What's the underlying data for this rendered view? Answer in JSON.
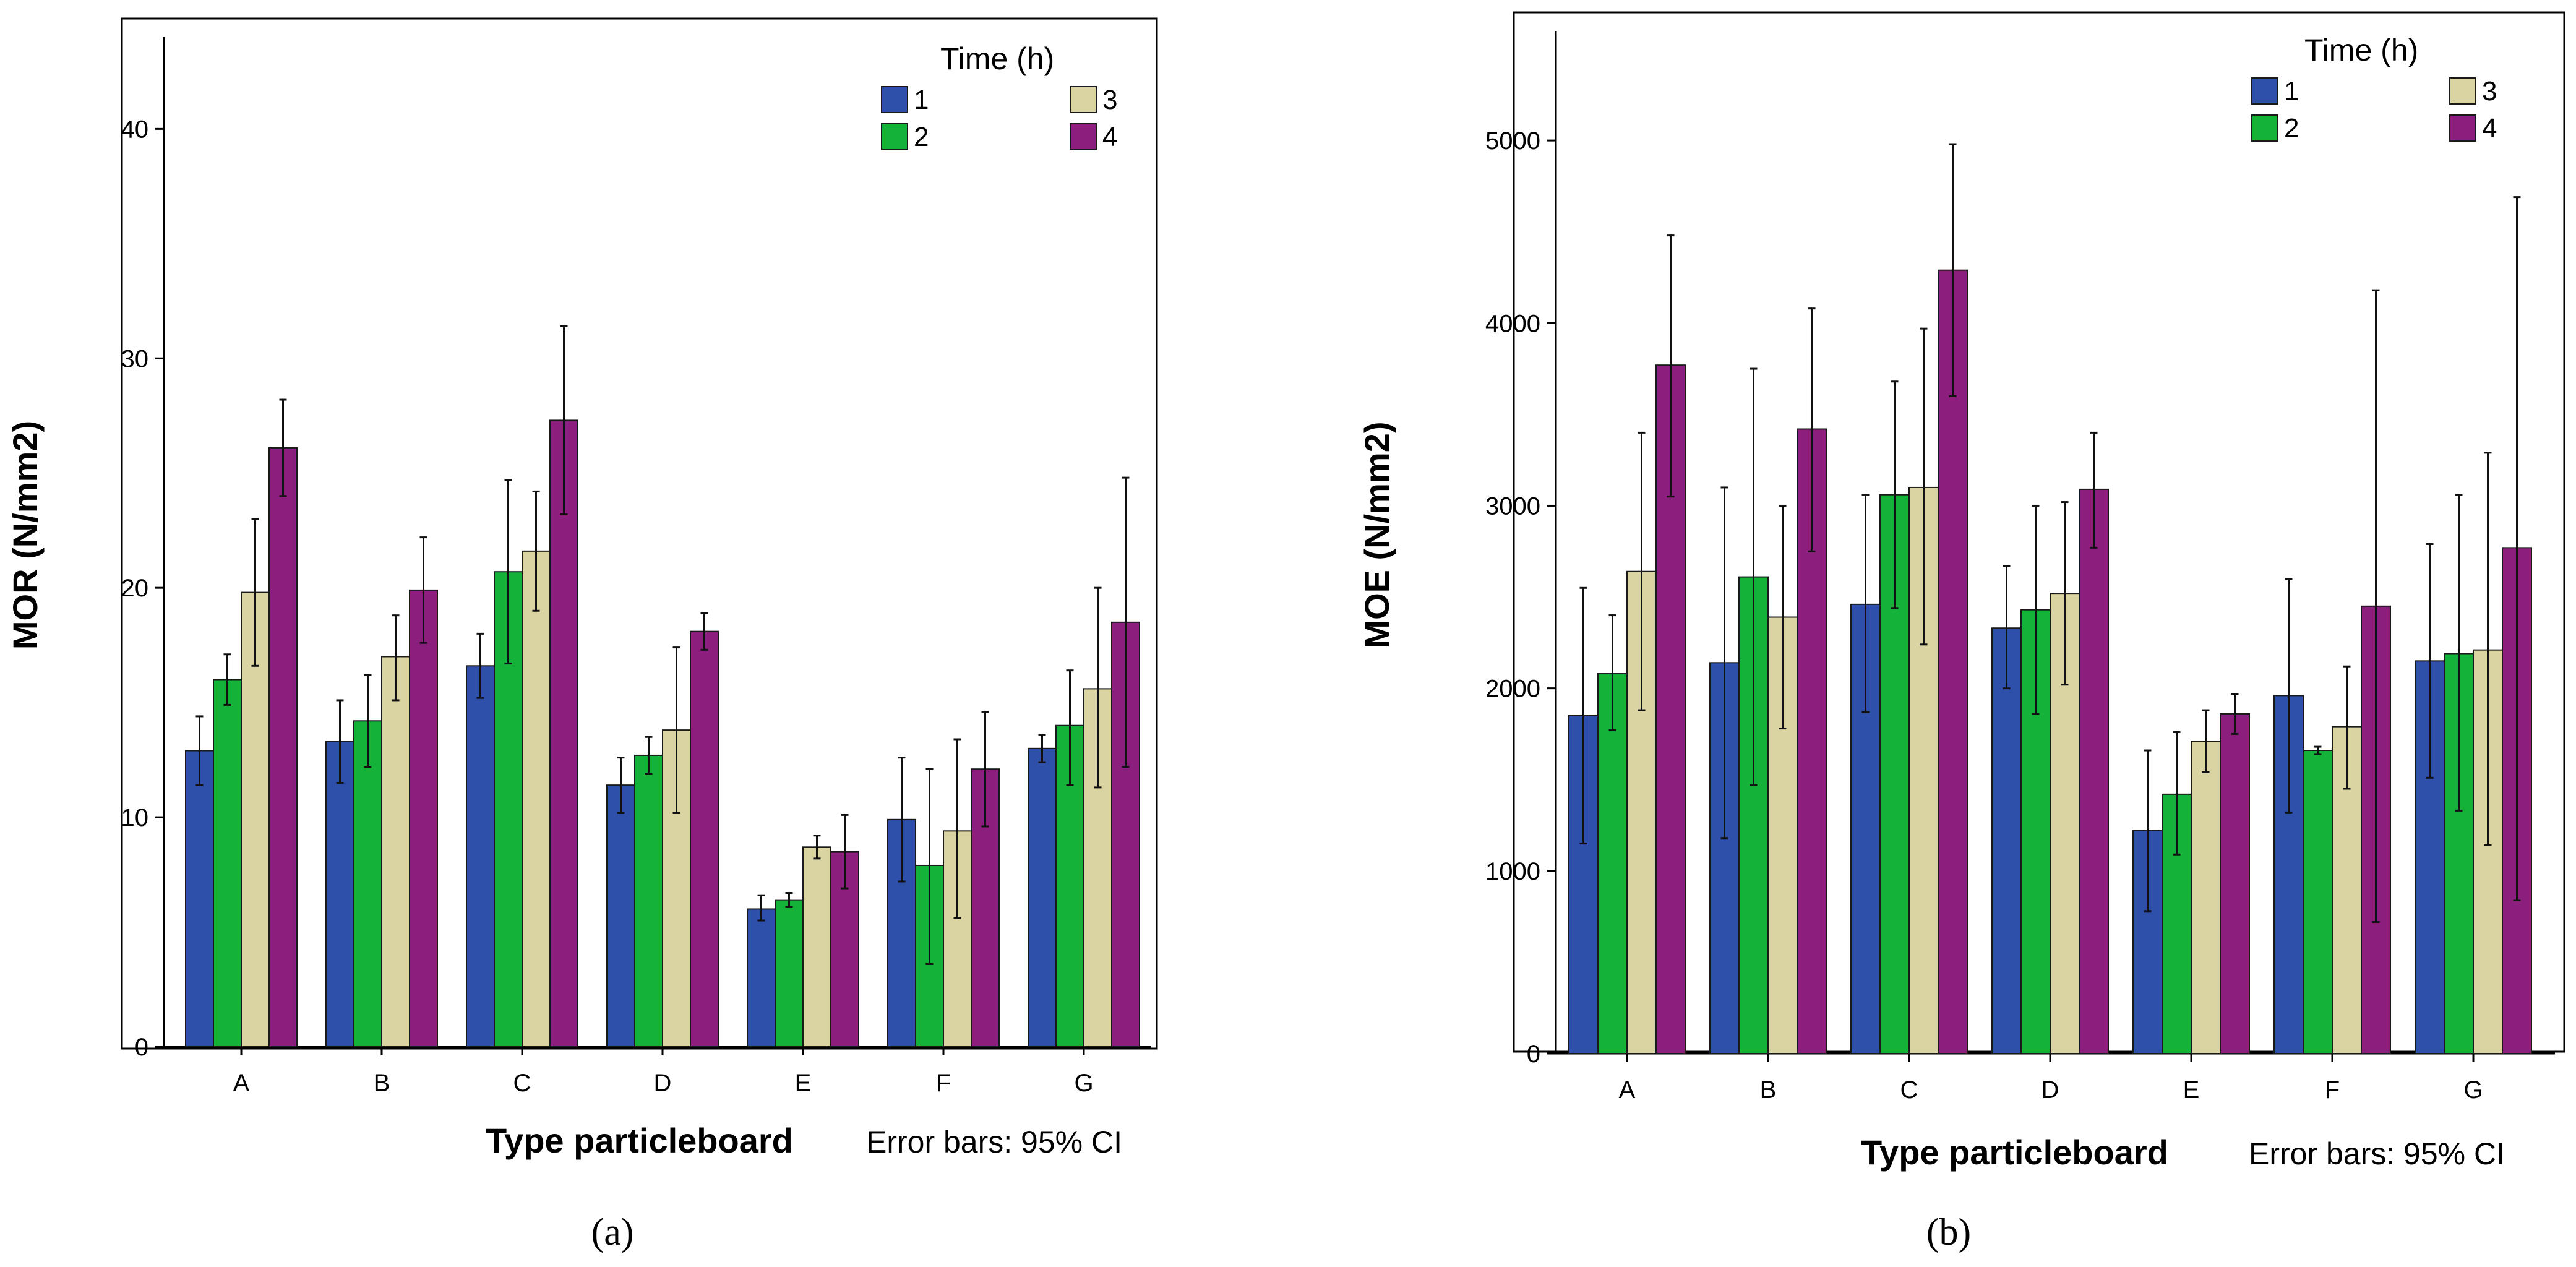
{
  "figure": {
    "panel_labels": [
      "(a)",
      "(b)"
    ]
  },
  "chart_data": [
    {
      "type": "bar",
      "panel_label": "(a)",
      "categories": [
        "A",
        "B",
        "C",
        "D",
        "E",
        "F",
        "G"
      ],
      "xlabel": "Type particleboard",
      "ylabel": "MOR (N/mm2)",
      "note": "Error bars: 95% CI",
      "legend_title": "Time (h)",
      "legend_placement": "top-right",
      "ylim": [
        0,
        44
      ],
      "yticks": [
        0,
        10,
        20,
        30,
        40
      ],
      "grid": false,
      "series": [
        {
          "name": "1",
          "color": "#2E4FAA",
          "values": [
            12.9,
            13.3,
            16.6,
            11.4,
            6.0,
            9.9,
            13.0
          ],
          "ci_low": [
            11.4,
            11.5,
            15.2,
            10.2,
            5.5,
            7.2,
            12.4
          ],
          "ci_high": [
            14.4,
            15.1,
            18.0,
            12.6,
            6.6,
            12.6,
            13.6
          ]
        },
        {
          "name": "2",
          "color": "#15B23A",
          "values": [
            16.0,
            14.2,
            20.7,
            12.7,
            6.4,
            7.9,
            14.0
          ],
          "ci_low": [
            14.9,
            12.2,
            16.7,
            11.9,
            6.1,
            3.6,
            11.4
          ],
          "ci_high": [
            17.1,
            16.2,
            24.7,
            13.5,
            6.7,
            12.1,
            16.4
          ]
        },
        {
          "name": "3",
          "color": "#DAD4A2",
          "values": [
            19.8,
            17.0,
            21.6,
            13.8,
            8.7,
            9.4,
            15.6
          ],
          "ci_low": [
            16.6,
            15.1,
            19.0,
            10.2,
            8.2,
            5.6,
            11.3
          ],
          "ci_high": [
            23.0,
            18.8,
            24.2,
            17.4,
            9.2,
            13.4,
            20.0
          ]
        },
        {
          "name": "4",
          "color": "#8C1F7E",
          "values": [
            26.1,
            19.9,
            27.3,
            18.1,
            8.5,
            12.1,
            18.5
          ],
          "ci_low": [
            24.0,
            17.6,
            23.2,
            17.3,
            6.9,
            9.6,
            12.2
          ],
          "ci_high": [
            28.2,
            22.2,
            31.4,
            18.9,
            10.1,
            14.6,
            24.8
          ]
        }
      ]
    },
    {
      "type": "bar",
      "panel_label": "(b)",
      "categories": [
        "A",
        "B",
        "C",
        "D",
        "E",
        "F",
        "G"
      ],
      "xlabel": "Type particleboard",
      "ylabel": "MOE (N/mm2)",
      "note": "Error bars: 95% CI",
      "legend_title": "Time (h)",
      "legend_placement": "top-right",
      "ylim": [
        0,
        5600
      ],
      "yticks": [
        0,
        1000,
        2000,
        3000,
        4000,
        5000
      ],
      "grid": false,
      "series": [
        {
          "name": "1",
          "color": "#2E4FAA",
          "values": [
            1850,
            2140,
            2460,
            2330,
            1220,
            1960,
            2150
          ],
          "ci_low": [
            1150,
            1180,
            1870,
            2000,
            780,
            1320,
            1510
          ],
          "ci_high": [
            2550,
            3100,
            3060,
            2670,
            1660,
            2600,
            2790
          ]
        },
        {
          "name": "2",
          "color": "#15B23A",
          "values": [
            2080,
            2610,
            3060,
            2430,
            1420,
            1660,
            2190
          ],
          "ci_low": [
            1770,
            1470,
            2440,
            1860,
            1090,
            1640,
            1330
          ],
          "ci_high": [
            2400,
            3750,
            3680,
            3000,
            1760,
            1680,
            3060
          ]
        },
        {
          "name": "3",
          "color": "#DAD4A2",
          "values": [
            2640,
            2390,
            3100,
            2520,
            1710,
            1790,
            2210
          ],
          "ci_low": [
            1880,
            1780,
            2240,
            2020,
            1540,
            1450,
            1140
          ],
          "ci_high": [
            3400,
            3000,
            3970,
            3020,
            1880,
            2120,
            3290
          ]
        },
        {
          "name": "4",
          "color": "#8C1F7E",
          "values": [
            3770,
            3420,
            4290,
            3090,
            1860,
            2450,
            2770
          ],
          "ci_low": [
            3050,
            2750,
            3600,
            2770,
            1750,
            720,
            840
          ],
          "ci_high": [
            4480,
            4080,
            4980,
            3400,
            1970,
            4180,
            4690
          ]
        }
      ]
    }
  ]
}
